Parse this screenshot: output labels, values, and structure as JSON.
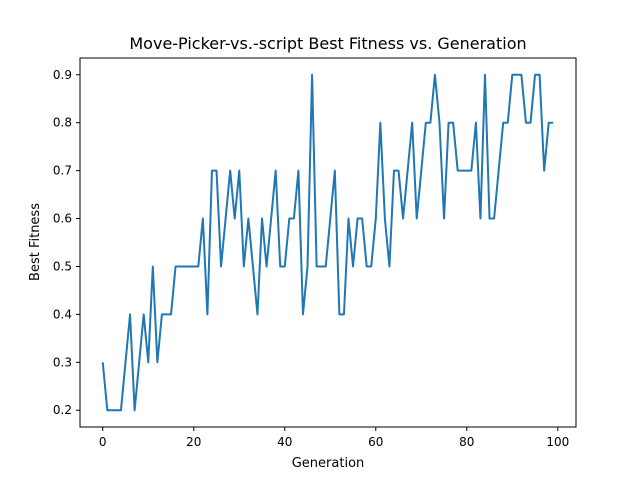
{
  "chart_data": {
    "type": "line",
    "title": "Move-Picker-vs.-script Best Fitness vs. Generation",
    "xlabel": "Generation",
    "ylabel": "Best Fitness",
    "xlim": [
      -5,
      104
    ],
    "ylim": [
      0.165,
      0.935
    ],
    "xticks": [
      0,
      20,
      40,
      60,
      80,
      100
    ],
    "yticks": [
      0.2,
      0.3,
      0.4,
      0.5,
      0.6,
      0.7,
      0.8,
      0.9
    ],
    "grid": false,
    "legend": "none",
    "series": [
      {
        "color": "#1f77b4",
        "x": [
          0,
          1,
          2,
          3,
          4,
          5,
          6,
          7,
          8,
          9,
          10,
          11,
          12,
          13,
          14,
          15,
          16,
          17,
          18,
          19,
          20,
          21,
          22,
          23,
          24,
          25,
          26,
          27,
          28,
          29,
          30,
          31,
          32,
          33,
          34,
          35,
          36,
          37,
          38,
          39,
          40,
          41,
          42,
          43,
          44,
          45,
          46,
          47,
          48,
          49,
          50,
          51,
          52,
          53,
          54,
          55,
          56,
          57,
          58,
          59,
          60,
          61,
          62,
          63,
          64,
          65,
          66,
          67,
          68,
          69,
          70,
          71,
          72,
          73,
          74,
          75,
          76,
          77,
          78,
          79,
          80,
          81,
          82,
          83,
          84,
          85,
          86,
          87,
          88,
          89,
          90,
          91,
          92,
          93,
          94,
          95,
          96,
          97,
          98,
          99
        ],
        "values": [
          0.3,
          0.2,
          0.2,
          0.2,
          0.2,
          0.3,
          0.4,
          0.2,
          0.3,
          0.4,
          0.3,
          0.5,
          0.3,
          0.4,
          0.4,
          0.4,
          0.5,
          0.5,
          0.5,
          0.5,
          0.5,
          0.5,
          0.6,
          0.4,
          0.7,
          0.7,
          0.5,
          0.6,
          0.7,
          0.6,
          0.7,
          0.5,
          0.6,
          0.5,
          0.4,
          0.6,
          0.5,
          0.6,
          0.7,
          0.5,
          0.5,
          0.6,
          0.6,
          0.7,
          0.4,
          0.5,
          0.9,
          0.5,
          0.5,
          0.5,
          0.6,
          0.7,
          0.4,
          0.4,
          0.6,
          0.5,
          0.6,
          0.6,
          0.5,
          0.5,
          0.6,
          0.8,
          0.6,
          0.5,
          0.7,
          0.7,
          0.6,
          0.7,
          0.8,
          0.6,
          0.7,
          0.8,
          0.8,
          0.9,
          0.8,
          0.6,
          0.8,
          0.8,
          0.7,
          0.7,
          0.7,
          0.7,
          0.8,
          0.6,
          0.9,
          0.6,
          0.6,
          0.7,
          0.8,
          0.8,
          0.9,
          0.9,
          0.9,
          0.8,
          0.8,
          0.9,
          0.9,
          0.7,
          0.8,
          0.8
        ]
      }
    ]
  }
}
